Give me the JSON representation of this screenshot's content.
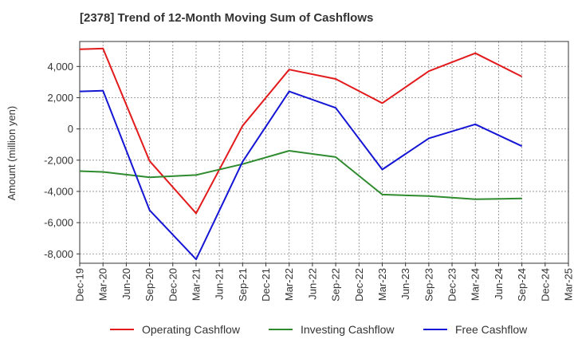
{
  "chart_data": {
    "type": "line",
    "title": "[2378]  Trend of 12-Month Moving Sum of Cashflows",
    "ylabel": "Amount (million yen)",
    "xlabel": "",
    "categories": [
      "Dec-19",
      "Mar-20",
      "Jun-20",
      "Sep-20",
      "Dec-20",
      "Mar-21",
      "Jun-21",
      "Sep-21",
      "Dec-21",
      "Mar-22",
      "Jun-22",
      "Sep-22",
      "Dec-22",
      "Mar-23",
      "Jun-23",
      "Sep-23",
      "Dec-23",
      "Mar-24",
      "Jun-24",
      "Sep-24",
      "Dec-24",
      "Mar-25"
    ],
    "y_ticks": [
      4000,
      2000,
      0,
      -2000,
      -4000,
      -6000,
      -8000
    ],
    "y_tick_labels": [
      "4,000",
      "2,000",
      "0",
      "-2,000",
      "-4,000",
      "-6,000",
      "-8,000"
    ],
    "ylim": [
      -8600,
      5600
    ],
    "grid": true,
    "legend_position": "bottom",
    "series": [
      {
        "name": "Operating Cashflow",
        "color": "#e31a1c",
        "values": [
          5100,
          5150,
          null,
          -2050,
          null,
          -5400,
          null,
          200,
          null,
          3800,
          null,
          3200,
          null,
          1650,
          null,
          3700,
          null,
          4850,
          null,
          3350,
          null,
          null
        ]
      },
      {
        "name": "Investing Cashflow",
        "color": "#2e8b2e",
        "values": [
          -2700,
          -2750,
          null,
          -3100,
          null,
          -2950,
          null,
          -2250,
          null,
          -1400,
          null,
          -1800,
          null,
          -4200,
          null,
          -4300,
          null,
          -4500,
          null,
          -4450,
          null,
          null
        ]
      },
      {
        "name": "Free Cashflow",
        "color": "#1515d6",
        "values": [
          2400,
          2450,
          null,
          -5200,
          null,
          -8350,
          null,
          -2100,
          null,
          2400,
          null,
          1350,
          null,
          -2600,
          null,
          -600,
          null,
          300,
          null,
          -1100,
          null,
          null
        ]
      }
    ]
  }
}
